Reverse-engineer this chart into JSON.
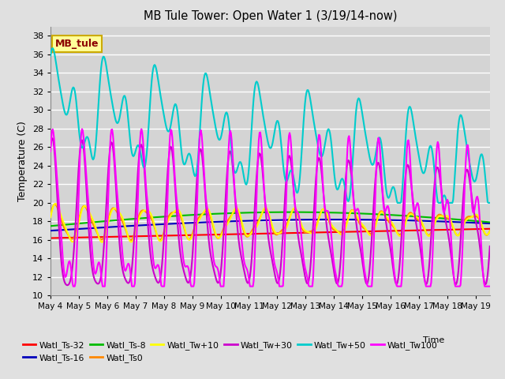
{
  "title": "MB Tule Tower: Open Water 1 (3/19/14-now)",
  "xlabel": "Time",
  "ylabel": "Temperature (C)",
  "ylim": [
    10,
    39
  ],
  "yticks": [
    10,
    12,
    14,
    16,
    18,
    20,
    22,
    24,
    26,
    28,
    30,
    32,
    34,
    36,
    38
  ],
  "xlim_start": 0,
  "xlim_end": 15.5,
  "xtick_labels": [
    "May 4",
    "May 5",
    "May 6",
    "May 7",
    "May 8",
    "May 9",
    "May 10",
    "May 11",
    "May 12",
    "May 13",
    "May 14",
    "May 15",
    "May 16",
    "May 17",
    "May 18",
    "May 19"
  ],
  "xtick_positions": [
    0,
    1,
    2,
    3,
    4,
    5,
    6,
    7,
    8,
    9,
    10,
    11,
    12,
    13,
    14,
    15
  ],
  "legend_label": "MB_tule",
  "series": [
    {
      "label": "Watl_Ts-32",
      "color": "#ff0000"
    },
    {
      "label": "Watl_Ts-16",
      "color": "#0000bb"
    },
    {
      "label": "Watl_Ts-8",
      "color": "#00bb00"
    },
    {
      "label": "Watl_Ts0",
      "color": "#ff8800"
    },
    {
      "label": "Watl_Tw+10",
      "color": "#ffff00"
    },
    {
      "label": "Watl_Tw+30",
      "color": "#cc00cc"
    },
    {
      "label": "Watl_Tw+50",
      "color": "#00cccc"
    },
    {
      "label": "Watl_Tw100",
      "color": "#ff00ff"
    }
  ],
  "bg_color": "#e0e0e0",
  "plot_bg_color": "#d4d4d4",
  "grid_color": "#ffffff",
  "n_points": 600
}
